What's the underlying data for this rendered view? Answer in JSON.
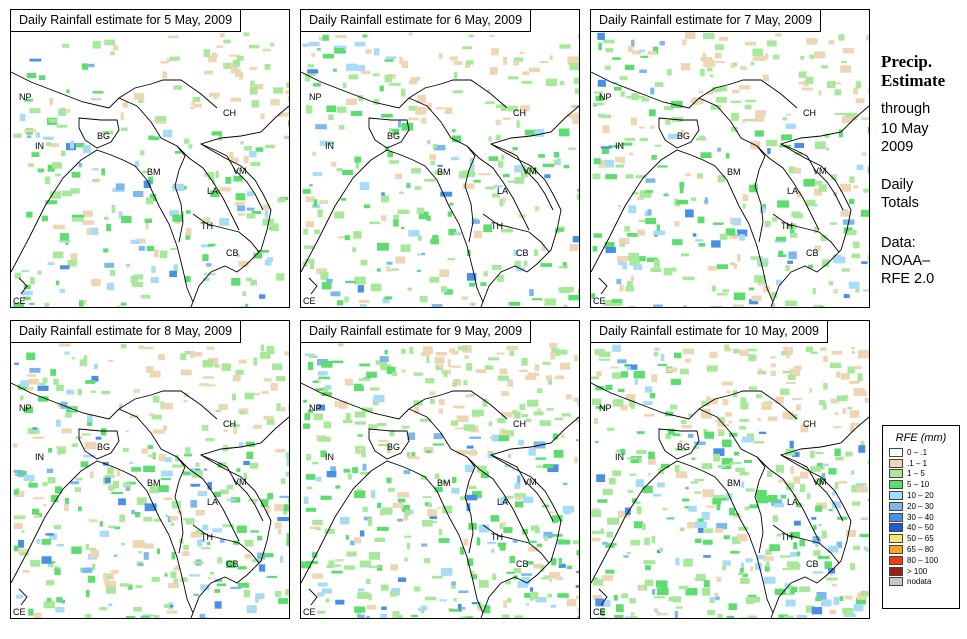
{
  "panels": [
    {
      "title": "Daily Rainfall estimate for  5 May, 2009"
    },
    {
      "title": "Daily Rainfall estimate for  6 May, 2009"
    },
    {
      "title": "Daily Rainfall estimate for  7 May, 2009"
    },
    {
      "title": "Daily Rainfall estimate for  8 May, 2009"
    },
    {
      "title": "Daily Rainfall estimate for  9 May, 2009"
    },
    {
      "title": "Daily Rainfall estimate for  10 May, 2009"
    }
  ],
  "country_labels": [
    "NP",
    "IN",
    "BG",
    "BM",
    "CH",
    "VM",
    "LA",
    "TH",
    "CB",
    "CE"
  ],
  "sidebar": {
    "title_line1": "Precip.",
    "title_line2": "Estimate",
    "through": "through",
    "date_line1": "10 May",
    "date_line2": "2009",
    "daily_line1": "Daily",
    "daily_line2": "Totals",
    "data_line1": "Data:",
    "data_line2": "NOAA–",
    "data_line3": "RFE 2.0"
  },
  "legend": {
    "title": "RFE (mm)",
    "items": [
      {
        "label": "0 – .1",
        "color": "#ffffff"
      },
      {
        "label": ".1 – 1",
        "color": "#ecd6b4"
      },
      {
        "label": "1 – 5",
        "color": "#a8e89a"
      },
      {
        "label": "5 – 10",
        "color": "#5cdd6e"
      },
      {
        "label": "10 – 20",
        "color": "#a8dcf6"
      },
      {
        "label": "20 – 30",
        "color": "#7cb8ee"
      },
      {
        "label": "30 – 40",
        "color": "#4a8fe6"
      },
      {
        "label": "40 – 50",
        "color": "#1f5fd6"
      },
      {
        "label": "50 – 65",
        "color": "#ffe36a"
      },
      {
        "label": "65 – 80",
        "color": "#ffa21e"
      },
      {
        "label": "80 – 100",
        "color": "#ee3b1c"
      },
      {
        "label": "> 100",
        "color": "#a11a14"
      },
      {
        "label": "nodata",
        "color": "#c8c8c0"
      }
    ]
  }
}
